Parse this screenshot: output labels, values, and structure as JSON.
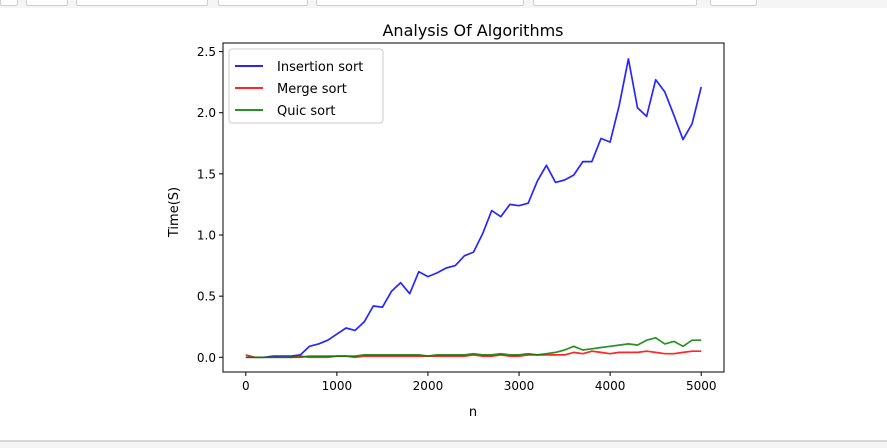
{
  "chart_data": {
    "type": "line",
    "title": "Analysis Of Algorithms",
    "xlabel": "n",
    "ylabel": "Time(S)",
    "xlim": [
      -250,
      5250
    ],
    "ylim": [
      -0.12,
      2.57
    ],
    "xticks": [
      0,
      1000,
      2000,
      3000,
      4000,
      5000
    ],
    "yticks": [
      0.0,
      0.5,
      1.0,
      1.5,
      2.0,
      2.5
    ],
    "xtick_labels": [
      "0",
      "1000",
      "2000",
      "3000",
      "4000",
      "5000"
    ],
    "ytick_labels": [
      "0.0",
      "0.5",
      "1.0",
      "1.5",
      "2.0",
      "2.5"
    ],
    "grid": false,
    "legend_position": "top-left",
    "x": [
      0,
      100,
      200,
      300,
      400,
      500,
      600,
      700,
      800,
      900,
      1000,
      1100,
      1200,
      1300,
      1400,
      1500,
      1600,
      1700,
      1800,
      1900,
      2000,
      2100,
      2200,
      2300,
      2400,
      2500,
      2600,
      2700,
      2800,
      2900,
      3000,
      3100,
      3200,
      3300,
      3400,
      3500,
      3600,
      3700,
      3800,
      3900,
      4000,
      4100,
      4200,
      4300,
      4400,
      4500,
      4600,
      4700,
      4800,
      4900,
      5000
    ],
    "series": [
      {
        "name": "Insertion sort",
        "color": "#0000ff",
        "values": [
          0.0,
          0.0,
          0.0,
          0.01,
          0.01,
          0.01,
          0.02,
          0.09,
          0.11,
          0.14,
          0.19,
          0.24,
          0.22,
          0.29,
          0.42,
          0.41,
          0.54,
          0.61,
          0.52,
          0.7,
          0.66,
          0.69,
          0.73,
          0.75,
          0.83,
          0.86,
          1.01,
          1.2,
          1.15,
          1.25,
          1.24,
          1.26,
          1.44,
          1.57,
          1.43,
          1.45,
          1.49,
          1.6,
          1.6,
          1.79,
          1.76,
          2.06,
          2.44,
          2.04,
          1.97,
          2.27,
          2.17,
          1.98,
          1.78,
          1.91,
          2.21
        ]
      },
      {
        "name": "Merge sort",
        "color": "#ff0000",
        "values": [
          0.02,
          0.0,
          0.0,
          0.0,
          0.0,
          0.0,
          0.01,
          0.0,
          0.0,
          0.0,
          0.01,
          0.01,
          0.0,
          0.01,
          0.01,
          0.01,
          0.01,
          0.01,
          0.01,
          0.01,
          0.01,
          0.01,
          0.01,
          0.01,
          0.01,
          0.02,
          0.01,
          0.01,
          0.02,
          0.01,
          0.01,
          0.02,
          0.02,
          0.02,
          0.02,
          0.02,
          0.04,
          0.03,
          0.05,
          0.04,
          0.03,
          0.04,
          0.04,
          0.04,
          0.05,
          0.04,
          0.03,
          0.03,
          0.04,
          0.05,
          0.05
        ]
      },
      {
        "name": "Quic sort",
        "color": "#008000",
        "values": [
          0.0,
          0.0,
          0.0,
          0.0,
          0.0,
          0.0,
          0.0,
          0.01,
          0.01,
          0.01,
          0.01,
          0.01,
          0.01,
          0.02,
          0.02,
          0.02,
          0.02,
          0.02,
          0.02,
          0.02,
          0.01,
          0.02,
          0.02,
          0.02,
          0.02,
          0.03,
          0.02,
          0.02,
          0.03,
          0.02,
          0.02,
          0.03,
          0.02,
          0.03,
          0.04,
          0.06,
          0.09,
          0.06,
          0.07,
          0.08,
          0.09,
          0.1,
          0.11,
          0.1,
          0.14,
          0.16,
          0.11,
          0.13,
          0.09,
          0.14,
          0.14
        ]
      }
    ]
  }
}
